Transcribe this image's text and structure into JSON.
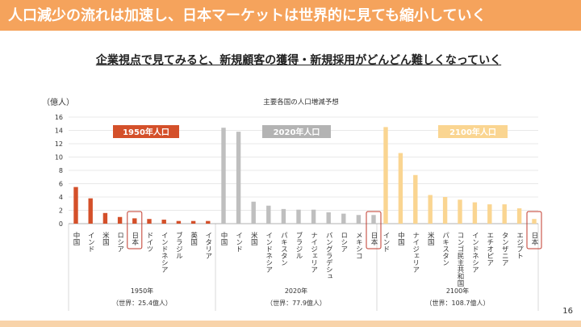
{
  "header": {
    "title": "人口減少の流れは加速し、日本マーケットは世界的に見ても縮小していく"
  },
  "subtitle": "企業視点で見てみると、新規顧客の獲得・新規採用がどんどん難しくなっていく",
  "page_number": "16",
  "colors": {
    "header": "#f5a35c",
    "s1950": "#d4502a",
    "s2020": "#bfbfbf",
    "s2100": "#fad591",
    "highlight": "#c0392b"
  },
  "chart_data": {
    "type": "bar",
    "title": "主要各国の人口増減予想",
    "ylabel": "（億人）",
    "ylim": [
      0,
      16
    ],
    "yticks": [
      0,
      2,
      4,
      6,
      8,
      10,
      12,
      14,
      16
    ],
    "grid": true,
    "groups": [
      {
        "name": "1950年人口",
        "axis_label": "1950年",
        "world_label": "（世界：25.4億人）",
        "categories": [
          "中国",
          "インド",
          "米国",
          "ロシア",
          "日本",
          "ドイツ",
          "インドネシア",
          "ブラジル",
          "英国",
          "イタリア"
        ],
        "values": [
          5.5,
          3.8,
          1.6,
          1.0,
          0.8,
          0.7,
          0.6,
          0.4,
          0.4,
          0.4
        ],
        "highlight": "日本"
      },
      {
        "name": "2020年人口",
        "axis_label": "2020年",
        "world_label": "（世界：77.9億人）",
        "categories": [
          "中国",
          "インド",
          "米国",
          "インドネシア",
          "パキスタン",
          "ブラジル",
          "ナイジェリア",
          "バングラデシュ",
          "ロシア",
          "メキシコ",
          "日本"
        ],
        "values": [
          14.4,
          13.8,
          3.3,
          2.7,
          2.2,
          2.1,
          2.1,
          1.7,
          1.5,
          1.3,
          1.3
        ],
        "highlight": "日本"
      },
      {
        "name": "2100年人口",
        "axis_label": "2100年",
        "world_label": "（世界：108.7億人）",
        "categories": [
          "インド",
          "中国",
          "ナイジェリア",
          "米国",
          "パキスタン",
          "コンゴ民主共和国",
          "インドネシア",
          "エチオピア",
          "タンザニア",
          "エジプト",
          "日本"
        ],
        "values": [
          14.5,
          10.6,
          7.3,
          4.3,
          4.0,
          3.6,
          3.2,
          2.9,
          2.9,
          2.3,
          0.7
        ],
        "highlight": "日本"
      }
    ]
  }
}
